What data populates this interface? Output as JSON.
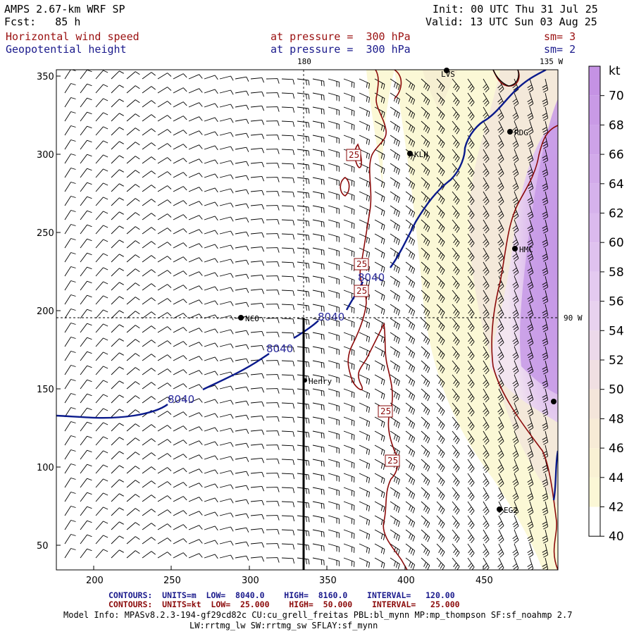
{
  "header": {
    "model_title": "AMPS 2.67-km WRF SP",
    "forecast": "Fcst:   85 h",
    "init": "Init: 00 UTC Thu 31 Jul 25",
    "valid": "Valid: 13 UTC Sun 03 Aug 25",
    "field1_name": "Horizontal wind speed",
    "field1_level": "at pressure =  300 hPa",
    "field1_sm": "sm= 3",
    "field2_name": "Geopotential height",
    "field2_level": "at pressure =  300 hPa",
    "field2_sm": "sm= 2"
  },
  "map": {
    "lon_labels": [
      "180",
      "135 W",
      "90 W"
    ],
    "x_ticks": [
      "200",
      "250",
      "300",
      "350",
      "400",
      "450"
    ],
    "y_ticks": [
      "350",
      "300",
      "250",
      "200",
      "150",
      "100",
      "50"
    ],
    "stations": [
      {
        "id": "LVS",
        "label": "LVS"
      },
      {
        "id": "RDG",
        "label": "RDG"
      },
      {
        "id": "KLN",
        "label": "KLN"
      },
      {
        "id": "HMC",
        "label": "HMC"
      },
      {
        "id": "NCO",
        "label": "NCO"
      },
      {
        "id": "Henry",
        "label": "Henry"
      },
      {
        "id": "EG2",
        "label": "EG2"
      },
      {
        "id": "edge",
        "label": ""
      }
    ],
    "height_contour_labels": [
      "8040",
      "8040",
      "8040",
      "8040"
    ],
    "wind_contour_labels": [
      "25",
      "25",
      "25",
      "25",
      "25"
    ],
    "colors": {
      "height_contour": "#0a1a8c",
      "wind_contour": "#8b0a0a",
      "barbs": "#000000",
      "shade_low": "#fbf8d2",
      "shade_mid": "#efdcd8",
      "shade_high": "#c596e6"
    }
  },
  "colorbar": {
    "unit": "kt",
    "levels": [
      "70",
      "68",
      "66",
      "64",
      "62",
      "60",
      "58",
      "56",
      "54",
      "52",
      "50",
      "48",
      "46",
      "44",
      "42",
      "40"
    ],
    "colors": [
      "#c592e4",
      "#c99ae6",
      "#cda2e8",
      "#d2aaea",
      "#d6b2ec",
      "#dbbaee",
      "#dfc2ef",
      "#e4caf0",
      "#e8d2ef",
      "#ecd9ea",
      "#f0dfe2",
      "#f4e5da",
      "#f7ebd6",
      "#f9f1d4",
      "#fbf7d6",
      "#ffffff"
    ]
  },
  "footer": {
    "line1": {
      "label": "CONTOURS:",
      "units": "UNITS=m",
      "low": "LOW=  8040.0",
      "high": "HIGH=  8160.0",
      "interval": "INTERVAL=   120.00"
    },
    "line2": {
      "label": "CONTOURS:",
      "units": "UNITS=kt",
      "low": "LOW=  25.000",
      "high": "HIGH=  50.000",
      "interval": "INTERVAL=   25.000"
    },
    "model_info_1": "Model Info: MPASv8.2.3-194-gf29cd82c CU:cu_grell_freitas PBL:bl_mynn MP:mp_thompson SF:sf_noahmp 2.7",
    "model_info_2": "LW:rrtmg_lw SW:rrtmg_sw SFLAY:sf_mynn"
  }
}
